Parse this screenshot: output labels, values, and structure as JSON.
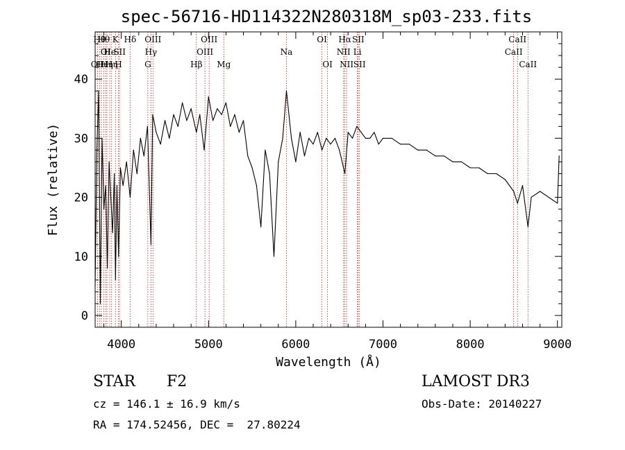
{
  "chart_data": {
    "type": "line",
    "title": "spec-56716-HD114322N280318M_sp03-233.fits",
    "xlabel": "Wavelength (Å)",
    "ylabel": "Flux (relative)",
    "xlim": [
      3700,
      9050
    ],
    "ylim": [
      -2,
      48
    ],
    "xticks": [
      4000,
      5000,
      6000,
      7000,
      8000,
      9000
    ],
    "yticks": [
      0,
      10,
      20,
      30,
      40
    ],
    "series": [
      {
        "name": "flux",
        "x": [
          3700,
          3720,
          3740,
          3760,
          3780,
          3800,
          3820,
          3840,
          3860,
          3880,
          3900,
          3920,
          3933,
          3950,
          3968,
          3990,
          4020,
          4060,
          4101,
          4140,
          4180,
          4220,
          4260,
          4300,
          4340,
          4360,
          4400,
          4450,
          4500,
          4550,
          4600,
          4650,
          4700,
          4750,
          4800,
          4861,
          4900,
          4950,
          5000,
          5050,
          5100,
          5150,
          5200,
          5250,
          5300,
          5350,
          5400,
          5450,
          5500,
          5550,
          5600,
          5650,
          5700,
          5750,
          5800,
          5850,
          5893,
          5950,
          6000,
          6050,
          6100,
          6150,
          6200,
          6250,
          6300,
          6350,
          6400,
          6450,
          6500,
          6563,
          6600,
          6650,
          6700,
          6750,
          6800,
          6850,
          6900,
          6950,
          7000,
          7100,
          7200,
          7300,
          7400,
          7500,
          7600,
          7700,
          7800,
          7900,
          8000,
          8100,
          8200,
          8300,
          8400,
          8498,
          8542,
          8600,
          8662,
          8700,
          8800,
          8900,
          9000,
          9020
        ],
        "y": [
          5,
          28,
          38,
          2,
          30,
          18,
          22,
          8,
          26,
          20,
          14,
          24,
          6,
          22,
          10,
          25,
          22,
          26,
          20,
          28,
          24,
          30,
          27,
          32,
          12,
          34,
          31,
          29,
          33,
          30,
          34,
          32,
          36,
          33,
          35,
          31,
          34,
          28,
          37,
          33,
          35,
          34,
          36,
          32,
          34,
          31,
          33,
          27,
          25,
          22,
          15,
          28,
          24,
          10,
          26,
          30,
          38,
          30,
          26,
          31,
          27,
          30,
          29,
          31,
          28,
          30,
          29,
          30,
          28,
          24,
          31,
          30,
          32,
          31,
          30,
          30,
          31,
          29,
          30,
          30,
          29,
          29,
          28,
          28,
          27,
          27,
          26,
          26,
          25,
          25,
          24,
          24,
          23,
          21,
          19,
          22,
          15,
          20,
          21,
          20,
          19,
          27
        ]
      }
    ],
    "lines": [
      {
        "w": 3727,
        "label": "OII",
        "row": 2
      },
      {
        "w": 3750,
        "label": "Hθ",
        "row": 0
      },
      {
        "w": 3771,
        "label": "Hι",
        "row": 2
      },
      {
        "w": 3798,
        "label": "Hθ",
        "row": 0
      },
      {
        "w": 3820,
        "label": "OI",
        "row": 1
      },
      {
        "w": 3835,
        "label": "Hη",
        "row": 2
      },
      {
        "w": 3868,
        "label": "He",
        "row": 1
      },
      {
        "w": 3889,
        "label": "Hη",
        "row": 2
      },
      {
        "w": 3933,
        "label": "K",
        "row": 0
      },
      {
        "w": 3968,
        "label": "H",
        "row": 2
      },
      {
        "w": 3980,
        "label": "SII",
        "row": 1
      },
      {
        "w": 4101,
        "label": "Hδ",
        "row": 0
      },
      {
        "w": 4304,
        "label": "G",
        "row": 2
      },
      {
        "w": 4340,
        "label": "Hγ",
        "row": 1
      },
      {
        "w": 4363,
        "label": "OIII",
        "row": 0
      },
      {
        "w": 4861,
        "label": "Hβ",
        "row": 2
      },
      {
        "w": 4959,
        "label": "OIII",
        "row": 1
      },
      {
        "w": 5007,
        "label": "OIII",
        "row": 0
      },
      {
        "w": 5175,
        "label": "Mg",
        "row": 2
      },
      {
        "w": 5893,
        "label": "Na",
        "row": 1
      },
      {
        "w": 6300,
        "label": "OI",
        "row": 0
      },
      {
        "w": 6364,
        "label": "OI",
        "row": 2
      },
      {
        "w": 6548,
        "label": "NII",
        "row": 1
      },
      {
        "w": 6563,
        "label": "Hα",
        "row": 0
      },
      {
        "w": 6583,
        "label": "NII",
        "row": 2
      },
      {
        "w": 6707,
        "label": "Li",
        "row": 1
      },
      {
        "w": 6716,
        "label": "SII",
        "row": 0
      },
      {
        "w": 6731,
        "label": "SII",
        "row": 2
      },
      {
        "w": 8498,
        "label": "CaII",
        "row": 1
      },
      {
        "w": 8542,
        "label": "CaII",
        "row": 0
      },
      {
        "w": 8662,
        "label": "CaII",
        "row": 2
      }
    ]
  },
  "info": {
    "class": "STAR",
    "subclass": "F2",
    "survey": "LAMOST DR3",
    "cz": "cz = 146.1 ± 16.9 km/s",
    "obs_date": "Obs-Date: 20140227",
    "coords": "RA = 174.52456, DEC =  27.80224"
  },
  "colors": {
    "line_marker": "#b22222",
    "spectrum": "#000000",
    "axis": "#000000"
  }
}
